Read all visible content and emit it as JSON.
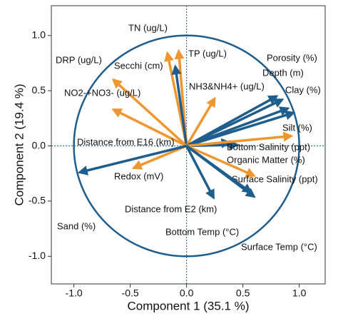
{
  "chart_data": {
    "type": "biplot",
    "xlabel": "Component 1  (35.1 %)",
    "ylabel": "Component 2  (19.4 %)",
    "xlim": [
      -1.2,
      1.23
    ],
    "ylim": [
      -1.25,
      1.27
    ],
    "xticks": [
      {
        "value": -1,
        "label": "-1.0"
      },
      -0.5,
      {
        "value": 0,
        "label": "0.0"
      },
      0.5,
      {
        "value": 1,
        "label": "1.0"
      }
    ],
    "yticks": [
      {
        "value": -1,
        "label": "-1.0"
      },
      -0.5,
      {
        "value": 0,
        "label": "0.0"
      },
      0.5,
      {
        "value": 1,
        "label": "1.0"
      }
    ],
    "circle_radius": 1,
    "vectors": [
      {
        "label": "TN (ug/L)",
        "x": -0.17,
        "y": 0.84,
        "color": "#f0962e"
      },
      {
        "label": "TP (ug/L)",
        "x": -0.07,
        "y": 0.86,
        "color": "#f0962e"
      },
      {
        "label": "DRP (ug/L)",
        "x": -0.65,
        "y": 0.6,
        "color": "#f0962e"
      },
      {
        "label": "Secchi (cm)",
        "x": -0.1,
        "y": 0.72,
        "color": "#1f5e8c"
      },
      {
        "label": "NO2-+NO3- (ug/L)",
        "x": -0.65,
        "y": 0.33,
        "color": "#f0962e"
      },
      {
        "label": "NH3&NH4+ (ug/L)",
        "x": 0.25,
        "y": 0.43,
        "color": "#f0962e"
      },
      {
        "label": "Depth (m)",
        "x": 0.8,
        "y": 0.45,
        "color": "#1f5e8c"
      },
      {
        "label": "Porosity (%)",
        "x": 0.85,
        "y": 0.42,
        "color": "#1f5e8c"
      },
      {
        "label": "Clay (%)",
        "x": 0.9,
        "y": 0.34,
        "color": "#1f5e8c"
      },
      {
        "label": "Silt (%)",
        "x": 0.95,
        "y": 0.3,
        "color": "#1f5e8c"
      },
      {
        "label": "Distance from E16 (km)",
        "x": 0.38,
        "y": 0.03,
        "color": "#1f5e8c"
      },
      {
        "label": "Bottom Salinity (ppt)",
        "x": 0.45,
        "y": 0.01,
        "color": "#1f5e8c"
      },
      {
        "label": "Organic Matter (%)",
        "x": 0.93,
        "y": 0.09,
        "color": "#f0962e"
      },
      {
        "label": "Surface Salinity (ppt)",
        "x": 0.6,
        "y": -0.27,
        "color": "#f0962e"
      },
      {
        "label": "Redox (mV)",
        "x": -0.47,
        "y": -0.2,
        "color": "#f0962e"
      },
      {
        "label": "Sand (%)",
        "x": -0.95,
        "y": -0.24,
        "color": "#1f5e8c"
      },
      {
        "label": "Distance from E2 (km)",
        "x": 0.24,
        "y": -0.47,
        "color": "#1f5e8c"
      },
      {
        "label": "Bottom Temp (°C)",
        "x": 0.57,
        "y": -0.42,
        "color": "#1f5e8c"
      },
      {
        "label": "Surface Temp (°C)",
        "x": 0.6,
        "y": -0.46,
        "color": "#1f5e8c"
      }
    ]
  }
}
